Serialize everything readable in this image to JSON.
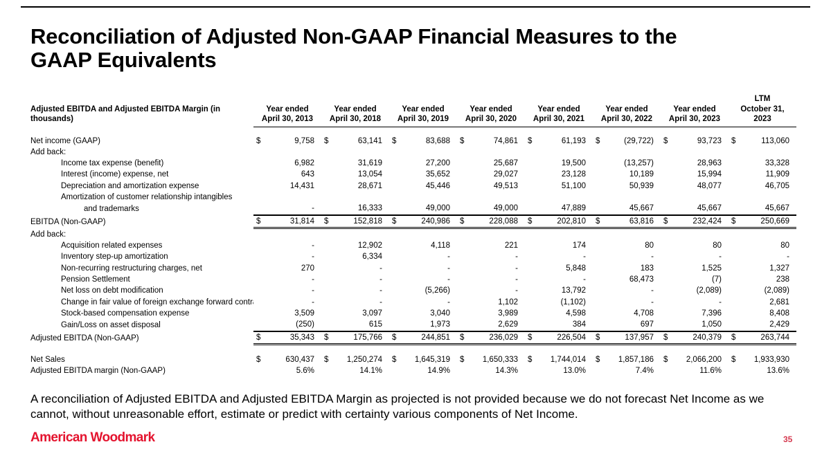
{
  "page": {
    "title_line1": "Reconciliation of Adjusted Non-GAAP Financial Measures to the",
    "title_line2": "GAAP Equivalents",
    "footnote": "A reconciliation of Adjusted EBITDA and Adjusted EBITDA Margin as projected is not provided because we do not forecast Net Income as we cannot, without unreasonable effort, estimate or predict with certainty various components of Net Income.",
    "logo_text": "American Woodmark",
    "page_number": "35",
    "brand_red": "#E4132E"
  },
  "table": {
    "row_header": "Adjusted EBITDA and Adjusted EBITDA Margin (in thousands)",
    "columns": [
      {
        "lines": [
          "Year ended",
          "April 30, 2013"
        ]
      },
      {
        "lines": [
          "Year ended",
          "April 30, 2018"
        ]
      },
      {
        "lines": [
          "Year ended",
          "April 30, 2019"
        ]
      },
      {
        "lines": [
          "Year ended",
          "April 30, 2020"
        ]
      },
      {
        "lines": [
          "Year ended",
          "April 30, 2021"
        ]
      },
      {
        "lines": [
          "Year ended",
          "April 30, 2022"
        ]
      },
      {
        "lines": [
          "Year ended",
          "April 30, 2023"
        ]
      },
      {
        "lines": [
          "LTM",
          "October 31,",
          "2023"
        ]
      }
    ],
    "rows": [
      {
        "label": "Net income (GAAP)",
        "indent": 0,
        "dollar": true,
        "values": [
          "9,758",
          "63,141",
          "83,688",
          "74,861",
          "61,193",
          "(29,722)",
          "93,723",
          "113,060"
        ]
      },
      {
        "label": "Add back:",
        "indent": 0,
        "values": [
          "",
          "",
          "",
          "",
          "",
          "",
          "",
          ""
        ]
      },
      {
        "label": "Income tax expense (benefit)",
        "indent": 1,
        "values": [
          "6,982",
          "31,619",
          "27,200",
          "25,687",
          "19,500",
          "(13,257)",
          "28,963",
          "33,328"
        ]
      },
      {
        "label": "Interest (income) expense, net",
        "indent": 1,
        "values": [
          "643",
          "13,054",
          "35,652",
          "29,027",
          "23,128",
          "10,189",
          "15,994",
          "11,909"
        ]
      },
      {
        "label": "Depreciation and amortization expense",
        "indent": 1,
        "values": [
          "14,431",
          "28,671",
          "45,446",
          "49,513",
          "51,100",
          "50,939",
          "48,077",
          "46,705"
        ]
      },
      {
        "label": "Amortization of customer relationship intangibles",
        "indent": 1,
        "values": [
          "",
          "",
          "",
          "",
          "",
          "",
          "",
          ""
        ]
      },
      {
        "label": "and trademarks",
        "indent": 2,
        "underline_below": true,
        "values": [
          "-",
          "16,333",
          "49,000",
          "49,000",
          "47,889",
          "45,667",
          "45,667",
          "45,667"
        ]
      },
      {
        "label": "EBITDA (Non-GAAP)",
        "indent": 0,
        "dollar": true,
        "subtotal": true,
        "values": [
          "31,814",
          "152,818",
          "240,986",
          "228,088",
          "202,810",
          "63,816",
          "232,424",
          "250,669"
        ]
      },
      {
        "label": "Add back:",
        "indent": 0,
        "values": [
          "",
          "",
          "",
          "",
          "",
          "",
          "",
          ""
        ]
      },
      {
        "label": "Acquisition related expenses",
        "indent": 1,
        "values": [
          "-",
          "12,902",
          "4,118",
          "221",
          "174",
          "80",
          "80",
          "80"
        ]
      },
      {
        "label": "Inventory step-up amortization",
        "indent": 1,
        "values": [
          "-",
          "6,334",
          "-",
          "-",
          "-",
          "-",
          "-",
          "-"
        ]
      },
      {
        "label": "Non-recurring restructuring charges, net",
        "indent": 1,
        "values": [
          "270",
          "-",
          "-",
          "-",
          "5,848",
          "183",
          "1,525",
          "1,327"
        ]
      },
      {
        "label": "Pension Settlement",
        "indent": 1,
        "values": [
          "-",
          "-",
          "-",
          "-",
          "-",
          "68,473",
          "(7)",
          "238"
        ]
      },
      {
        "label": "Net loss on debt modification",
        "indent": 1,
        "values": [
          "-",
          "-",
          "(5,266)",
          "-",
          "13,792",
          "-",
          "(2,089)",
          "(2,089)"
        ]
      },
      {
        "label": "Change in fair value of foreign exchange forward contrac",
        "indent": 1,
        "values": [
          "-",
          "-",
          "-",
          "1,102",
          "(1,102)",
          "-",
          "-",
          "2,681"
        ]
      },
      {
        "label": "Stock-based compensation expense",
        "indent": 1,
        "values": [
          "3,509",
          "3,097",
          "3,040",
          "3,989",
          "4,598",
          "4,708",
          "7,396",
          "8,408"
        ]
      },
      {
        "label": "Gain/Loss on asset disposal",
        "indent": 1,
        "underline_below": true,
        "values": [
          "(250)",
          "615",
          "1,973",
          "2,629",
          "384",
          "697",
          "1,050",
          "2,429"
        ]
      },
      {
        "label": "Adjusted EBITDA (Non-GAAP)",
        "indent": 0,
        "dollar": true,
        "subtotal": true,
        "values": [
          "35,343",
          "175,766",
          "244,851",
          "236,029",
          "226,504",
          "137,957",
          "240,379",
          "263,744"
        ]
      },
      {
        "type": "spacer"
      },
      {
        "label": "Net Sales",
        "indent": 0,
        "dollar": true,
        "values": [
          "630,437",
          "1,250,274",
          "1,645,319",
          "1,650,333",
          "1,744,014",
          "1,857,186",
          "2,066,200",
          "1,933,930"
        ]
      },
      {
        "label": "Adjusted EBITDA margin (Non-GAAP)",
        "indent": 0,
        "values": [
          "5.6%",
          "14.1%",
          "14.9%",
          "14.3%",
          "13.0%",
          "7.4%",
          "11.6%",
          "13.6%"
        ]
      }
    ]
  }
}
